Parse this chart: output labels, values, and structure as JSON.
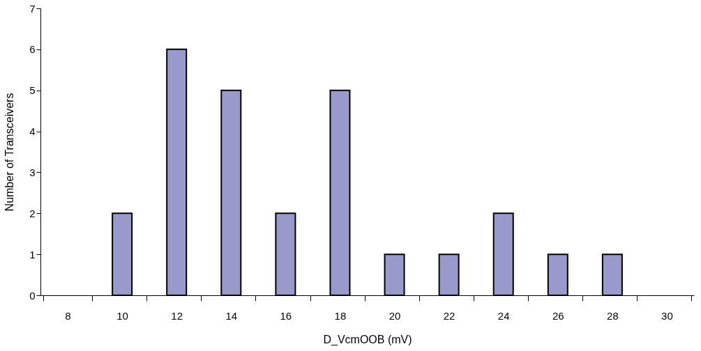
{
  "chart_data": {
    "type": "bar",
    "xlabel": "D_VcmOOB (mV)",
    "ylabel": "Number of Transceivers",
    "categories": [
      "8",
      "10",
      "12",
      "14",
      "16",
      "18",
      "20",
      "22",
      "24",
      "26",
      "28",
      "30"
    ],
    "values": [
      0,
      2,
      6,
      5,
      2,
      5,
      1,
      1,
      2,
      1,
      1,
      0
    ],
    "color": "#9999cc",
    "ylim": [
      0,
      7
    ],
    "yticks": [
      0,
      1,
      2,
      3,
      4,
      5,
      6,
      7
    ],
    "grid": false
  }
}
